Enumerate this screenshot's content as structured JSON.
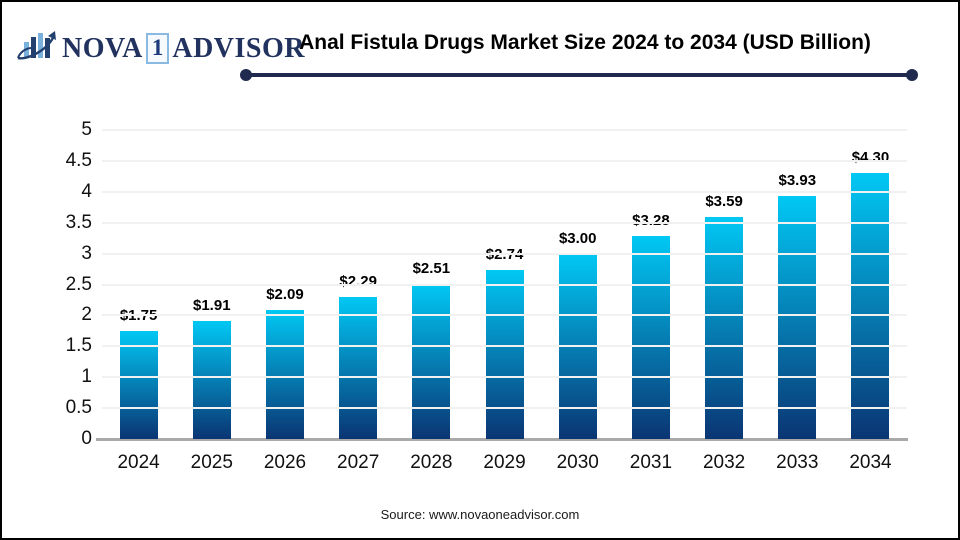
{
  "header": {
    "logo": {
      "brand_part1": "NOVA",
      "brand_number": "1",
      "brand_part2": "ADVISOR",
      "icon": "bar-chart-growth-icon",
      "text_color": "#22325f",
      "number_box_border": "#8ab9e2"
    },
    "title": "Anal Fistula Drugs Market Size 2024 to 2034 (USD Billion)",
    "divider_color": "#1f2a4e"
  },
  "chart_data": {
    "type": "bar",
    "title": "Anal Fistula Drugs Market Size 2024 to 2034 (USD Billion)",
    "categories": [
      "2024",
      "2025",
      "2026",
      "2027",
      "2028",
      "2029",
      "2030",
      "2031",
      "2032",
      "2033",
      "2034"
    ],
    "values": [
      1.75,
      1.91,
      2.09,
      2.29,
      2.51,
      2.74,
      3.0,
      3.28,
      3.59,
      3.93,
      4.3
    ],
    "value_labels": [
      "$1.75",
      "$1.91",
      "$2.09",
      "$2.29",
      "$2.51",
      "$2.74",
      "$3.00",
      "$3.28",
      "$3.59",
      "$3.93",
      "$4.30"
    ],
    "xlabel": "",
    "ylabel": "",
    "ylim": [
      0,
      5
    ],
    "ytick_step": 0.5,
    "yticks": [
      "5",
      "4.5",
      "4",
      "3.5",
      "3",
      "2.5",
      "2",
      "1.5",
      "1",
      "0.5",
      "0"
    ],
    "grid": true,
    "legend": "none",
    "bar_gradient_top": "#01c8f4",
    "bar_gradient_bottom": "#0a3573"
  },
  "footer": {
    "source": "Source: www.novaoneadvisor.com"
  }
}
